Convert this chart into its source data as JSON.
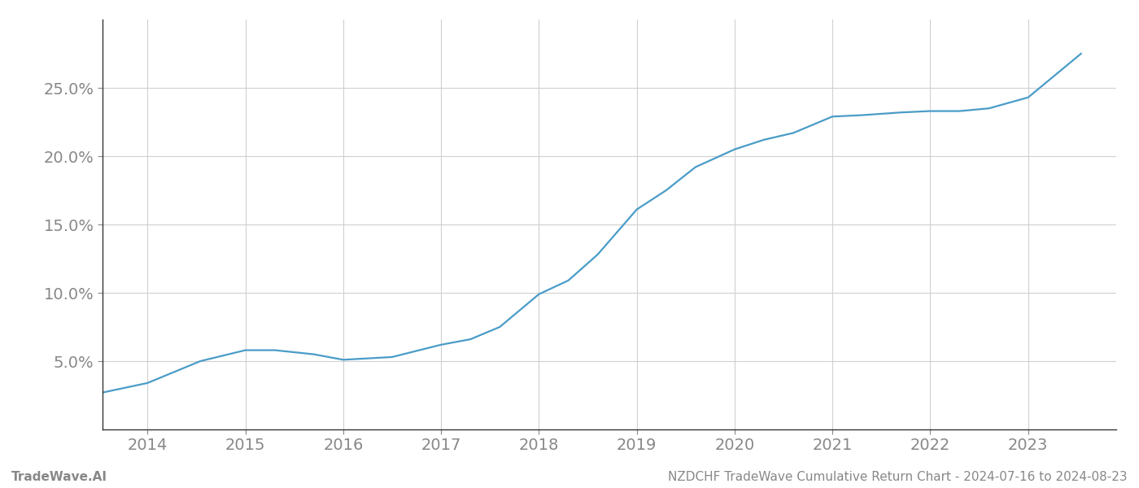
{
  "x_values": [
    2013.54,
    2014.0,
    2014.54,
    2015.0,
    2015.3,
    2015.7,
    2016.0,
    2016.5,
    2017.0,
    2017.3,
    2017.6,
    2018.0,
    2018.3,
    2018.6,
    2019.0,
    2019.3,
    2019.6,
    2020.0,
    2020.3,
    2020.6,
    2021.0,
    2021.3,
    2021.5,
    2021.7,
    2022.0,
    2022.3,
    2022.6,
    2023.0,
    2023.54
  ],
  "y_values": [
    0.027,
    0.034,
    0.05,
    0.058,
    0.058,
    0.055,
    0.051,
    0.053,
    0.062,
    0.066,
    0.075,
    0.099,
    0.109,
    0.128,
    0.161,
    0.175,
    0.192,
    0.205,
    0.212,
    0.217,
    0.229,
    0.23,
    0.231,
    0.232,
    0.233,
    0.233,
    0.235,
    0.243,
    0.275
  ],
  "line_color": "#4a9cc8",
  "line_width": 1.6,
  "background_color": "#ffffff",
  "grid_color": "#d0d0d0",
  "tick_color": "#888888",
  "spine_color": "#333333",
  "footer_left": "TradeWave.AI",
  "footer_right": "NZDCHF TradeWave Cumulative Return Chart - 2024-07-16 to 2024-08-23",
  "xlim": [
    2013.54,
    2023.9
  ],
  "ylim": [
    0.0,
    0.3
  ],
  "yticks": [
    0.05,
    0.1,
    0.15,
    0.2,
    0.25
  ],
  "xticks": [
    2014,
    2015,
    2016,
    2017,
    2018,
    2019,
    2020,
    2021,
    2022,
    2023
  ],
  "tick_fontsize": 14,
  "footer_fontsize": 11
}
